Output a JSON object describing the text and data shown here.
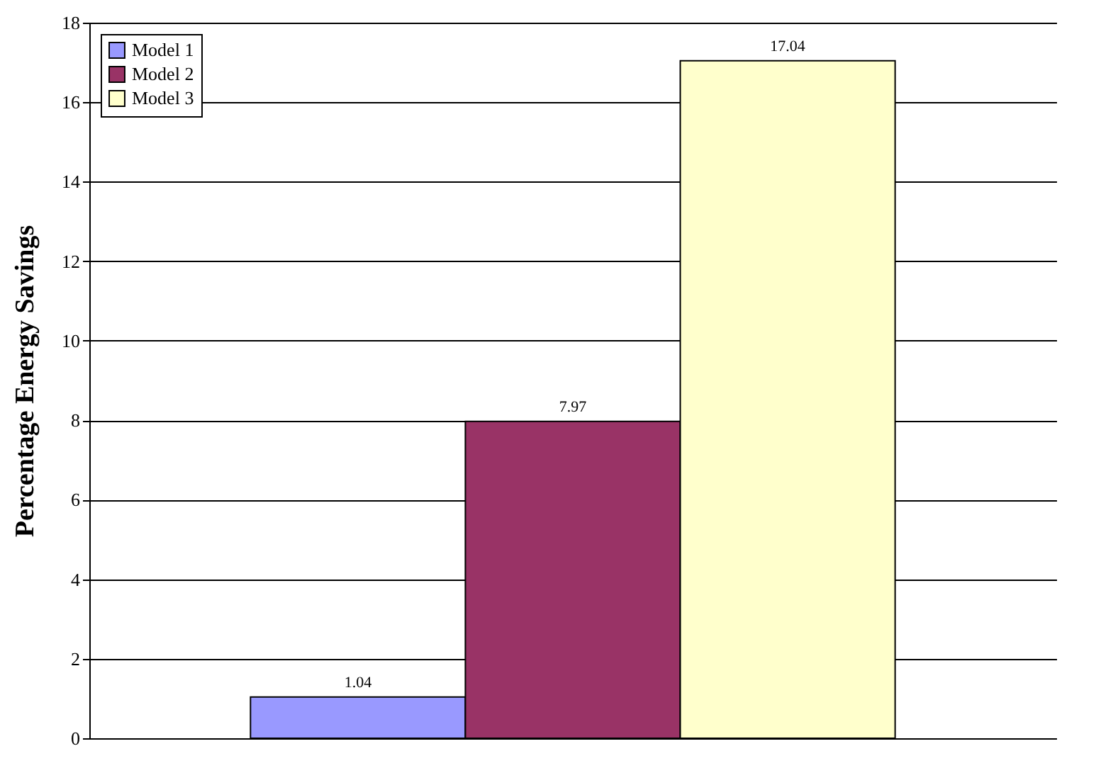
{
  "chart_data": {
    "type": "bar",
    "ylabel": "Percentage Energy Savings",
    "categories": [
      null
    ],
    "series": [
      {
        "name": "Model 1",
        "color": "#9999ff",
        "values": [
          1.04
        ]
      },
      {
        "name": "Model 2",
        "color": "#993366",
        "values": [
          7.97
        ]
      },
      {
        "name": "Model 3",
        "color": "#ffffcc",
        "values": [
          17.04
        ]
      }
    ],
    "ylim": [
      0,
      18
    ],
    "yticks": [
      0,
      2,
      4,
      6,
      8,
      10,
      12,
      14,
      16,
      18
    ],
    "grid": "y",
    "legend": "top left",
    "data_labels": true,
    "tick_labels": "y"
  }
}
